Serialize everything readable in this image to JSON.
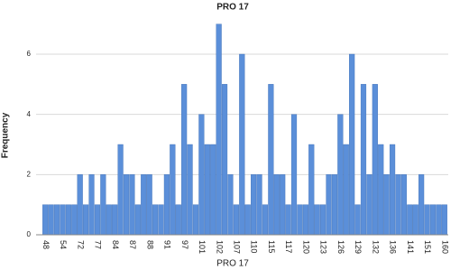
{
  "chart_data": {
    "type": "bar",
    "title": "PRO 17",
    "x_label": "PRO 17",
    "y_label": "Frequency",
    "categories": [
      "48",
      null,
      null,
      "54",
      null,
      null,
      "72",
      null,
      null,
      "77",
      null,
      null,
      "84",
      null,
      null,
      "87",
      null,
      null,
      "88",
      null,
      null,
      "91",
      null,
      null,
      "97",
      null,
      null,
      "101",
      null,
      null,
      "102",
      null,
      null,
      "107",
      null,
      null,
      "110",
      null,
      null,
      "115",
      null,
      null,
      "117",
      null,
      null,
      "120",
      null,
      null,
      "123",
      null,
      null,
      "126",
      null,
      null,
      "129",
      null,
      null,
      "132",
      null,
      null,
      "136",
      null,
      null,
      "141",
      null,
      null,
      "151",
      null,
      null,
      "160"
    ],
    "values": [
      1,
      1,
      1,
      1,
      1,
      1,
      2,
      1,
      2,
      1,
      2,
      1,
      1,
      3,
      2,
      2,
      1,
      2,
      2,
      1,
      1,
      2,
      3,
      1,
      5,
      3,
      1,
      4,
      3,
      3,
      7,
      5,
      2,
      1,
      6,
      1,
      2,
      2,
      1,
      5,
      2,
      2,
      1,
      4,
      1,
      1,
      3,
      1,
      1,
      2,
      2,
      4,
      3,
      6,
      1,
      5,
      2,
      5,
      3,
      2,
      3,
      2,
      2,
      1,
      1,
      2,
      1,
      1,
      1,
      1
    ],
    "color": "#5b8fd9",
    "ylim": [
      0,
      7.5
    ],
    "yticks": [
      0,
      2,
      4,
      6
    ],
    "grid": true
  }
}
